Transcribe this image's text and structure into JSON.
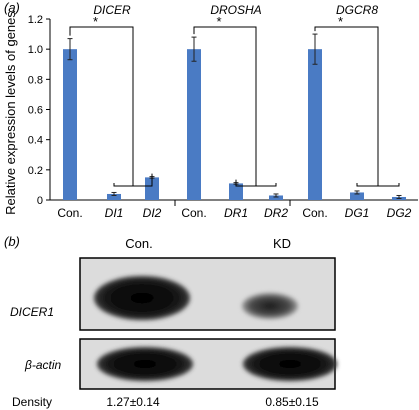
{
  "panels": {
    "a": {
      "label": "(a)"
    },
    "b": {
      "label": "(b)"
    }
  },
  "colors": {
    "bar": "#4a7bc4",
    "axis": "#000000",
    "blot_bg": "#d8d8d8",
    "band": "#0b0b0b"
  },
  "chart_data": {
    "type": "bar",
    "ylabel": "Relative expression levels of genes",
    "xlabel": "",
    "ylim": [
      0,
      1.2
    ],
    "yticks": [
      "0",
      "0.2",
      "0.4",
      "0.6",
      "0.8",
      "1.0",
      "1.2"
    ],
    "grid": false,
    "error_bars": true,
    "groups": [
      {
        "gene": "DICER",
        "categories": [
          "Con.",
          "DI1",
          "DI2"
        ],
        "values": [
          1.0,
          0.04,
          0.15
        ],
        "errors": [
          0.07,
          0.01,
          0.005
        ],
        "significance": "*"
      },
      {
        "gene": "DROSHA",
        "categories": [
          "Con.",
          "DR1",
          "DR2"
        ],
        "values": [
          1.0,
          0.11,
          0.03
        ],
        "errors": [
          0.08,
          0.005,
          0.01
        ],
        "significance": "*"
      },
      {
        "gene": "DGCR8",
        "categories": [
          "Con.",
          "DG1",
          "DG2"
        ],
        "values": [
          1.0,
          0.05,
          0.02
        ],
        "errors": [
          0.1,
          0.01,
          0.01
        ],
        "significance": "*"
      }
    ]
  },
  "blot": {
    "lanes": [
      "Con.",
      "KD"
    ],
    "rows": [
      {
        "label": "DICER1"
      },
      {
        "label": "β-actin"
      }
    ],
    "density": {
      "label": "Density",
      "values": [
        "1.27±0.14",
        "0.85±0.15"
      ]
    }
  }
}
